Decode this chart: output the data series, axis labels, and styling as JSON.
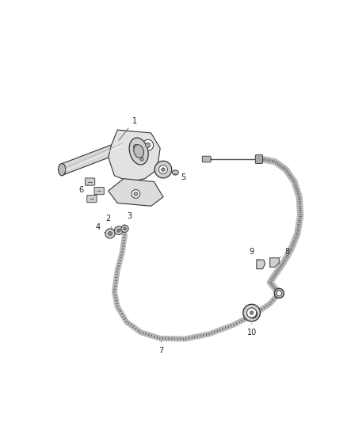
{
  "background_color": "#ffffff",
  "line_color": "#555555",
  "dark_color": "#333333",
  "light_gray": "#cccccc",
  "mid_gray": "#999999",
  "fig_width": 4.38,
  "fig_height": 5.33,
  "dpi": 100,
  "label_fs": 7.0,
  "cable_color": "#888888",
  "cable_lw": 3.5,
  "cable_tex_color": "#444444",
  "cable_tex_lw": 0.6
}
